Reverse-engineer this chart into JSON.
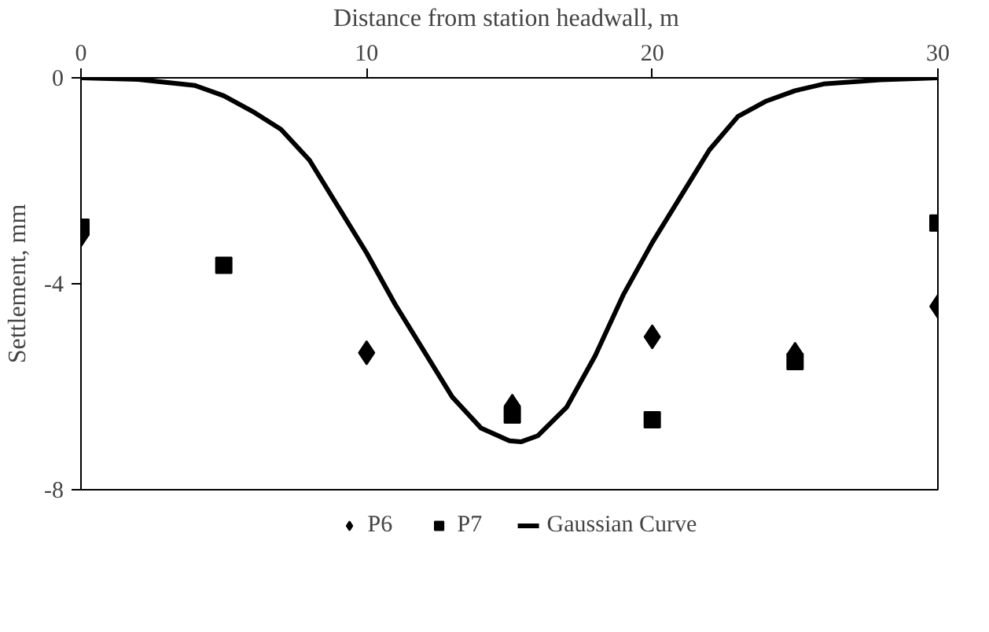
{
  "chart_data": {
    "type": "scatter",
    "xlabel": "Distance from station headwall,  m",
    "ylabel": "Settlement, mm",
    "xlim": [
      0,
      30
    ],
    "xticks": [
      0,
      10,
      20,
      30
    ],
    "ylim": [
      -8,
      0
    ],
    "yticks": [
      0,
      -4,
      -8
    ],
    "grid": false,
    "legend": "bottom",
    "series": [
      {
        "name": "P6",
        "color": "#000000",
        "marker": "diamond",
        "x": [
          0,
          10,
          15.1,
          20,
          25,
          30
        ],
        "values": [
          -3.05,
          -5.34,
          -6.38,
          -5.03,
          -5.37,
          -4.44
        ]
      },
      {
        "name": "P7",
        "color": "#000000",
        "marker": "square",
        "x": [
          0,
          5,
          15.1,
          20,
          25,
          30
        ],
        "values": [
          -2.9,
          -3.64,
          -6.55,
          -6.64,
          -5.51,
          -2.82
        ]
      },
      {
        "name": "Gaussian Curve",
        "type": "line",
        "color": "#000000",
        "marker": "none",
        "line_style": "solid",
        "x": [
          0,
          2,
          4,
          5,
          6,
          7,
          8,
          9,
          10,
          11,
          12,
          13,
          14,
          15,
          15.4,
          16,
          17,
          18,
          19,
          20,
          21,
          22,
          23,
          24,
          25,
          26,
          28,
          30
        ],
        "values": [
          0,
          -0.03,
          -0.15,
          -0.35,
          -0.65,
          -1.0,
          -1.6,
          -2.5,
          -3.4,
          -4.4,
          -5.3,
          -6.2,
          -6.8,
          -7.05,
          -7.07,
          -6.95,
          -6.4,
          -5.4,
          -4.2,
          -3.2,
          -2.3,
          -1.4,
          -0.75,
          -0.45,
          -0.25,
          -0.12,
          -0.04,
          0
        ]
      }
    ]
  }
}
